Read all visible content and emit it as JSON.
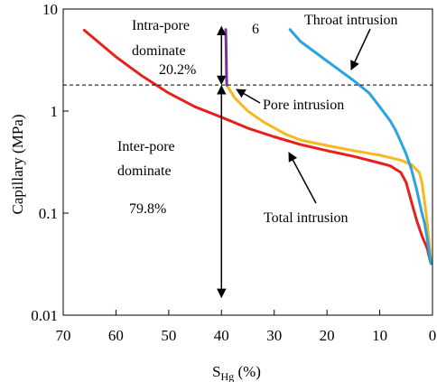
{
  "chart_data": {
    "type": "line",
    "xlabel_main": "S",
    "xlabel_sub": "Hg",
    "xlabel_unit": " (%)",
    "ylabel": "Capillary  (MPa)",
    "x_scale": "linear-reversed",
    "y_scale": "log",
    "xlim": [
      70,
      0
    ],
    "ylim": [
      0.01,
      10
    ],
    "x_ticks": [
      "70",
      "60",
      "50",
      "40",
      "30",
      "20",
      "10",
      "0"
    ],
    "y_ticks": [
      "10",
      "1",
      "0.1",
      "0.01"
    ],
    "threshold_pressure": 1.8,
    "threshold_line_style": "dashed",
    "series": [
      {
        "name": "Total intrusion",
        "color": "#e8201a",
        "points": [
          [
            66,
            6.2
          ],
          [
            60,
            3.4
          ],
          [
            55,
            2.2
          ],
          [
            50,
            1.5
          ],
          [
            45,
            1.1
          ],
          [
            40,
            0.87
          ],
          [
            35,
            0.68
          ],
          [
            30,
            0.56
          ],
          [
            25,
            0.47
          ],
          [
            20,
            0.41
          ],
          [
            15,
            0.36
          ],
          [
            10,
            0.31
          ],
          [
            8,
            0.29
          ],
          [
            6,
            0.25
          ],
          [
            5,
            0.2
          ],
          [
            4,
            0.13
          ],
          [
            3,
            0.085
          ],
          [
            2,
            0.06
          ],
          [
            1,
            0.045
          ],
          [
            0.3,
            0.032
          ]
        ]
      },
      {
        "name": "Pore intrusion",
        "color": "#f7b81c",
        "points": [
          [
            39,
            1.8
          ],
          [
            37.5,
            1.35
          ],
          [
            35,
            1.0
          ],
          [
            32,
            0.78
          ],
          [
            28,
            0.6
          ],
          [
            25,
            0.52
          ],
          [
            20,
            0.46
          ],
          [
            15,
            0.41
          ],
          [
            10,
            0.37
          ],
          [
            6,
            0.33
          ],
          [
            4,
            0.3
          ],
          [
            2.5,
            0.25
          ],
          [
            2,
            0.2
          ],
          [
            1.5,
            0.13
          ],
          [
            1,
            0.08
          ],
          [
            0.6,
            0.05
          ],
          [
            0.3,
            0.033
          ]
        ]
      },
      {
        "name": "Throat intrusion",
        "color": "#2aa4e0",
        "points": [
          [
            27,
            6.3
          ],
          [
            25,
            4.8
          ],
          [
            20,
            3.1
          ],
          [
            15,
            2.0
          ],
          [
            12,
            1.5
          ],
          [
            10,
            1.1
          ],
          [
            8,
            0.8
          ],
          [
            7,
            0.65
          ],
          [
            6,
            0.5
          ],
          [
            5,
            0.38
          ],
          [
            4,
            0.27
          ],
          [
            3,
            0.17
          ],
          [
            2,
            0.1
          ],
          [
            1.5,
            0.08
          ],
          [
            1,
            0.056
          ],
          [
            0.3,
            0.032
          ]
        ]
      },
      {
        "name": "",
        "color": "#7b2fa5",
        "points": [
          [
            39.2,
            6.3
          ],
          [
            39.1,
            4.0
          ],
          [
            39.05,
            2.5
          ],
          [
            39,
            1.8
          ]
        ]
      }
    ],
    "annotations": {
      "intra_pore_line1": "Intra-pore",
      "intra_pore_line2": "dominate",
      "intra_pore_pct": "20.2%",
      "inter_pore_line1": "Inter-pore",
      "inter_pore_line2": "dominate",
      "inter_pore_pct": "79.8%",
      "sample_id": "6",
      "throat_label": "Throat intrusion",
      "pore_label": "Pore intrusion",
      "total_label": "Total intrusion"
    },
    "grid": false,
    "legend": "none"
  }
}
